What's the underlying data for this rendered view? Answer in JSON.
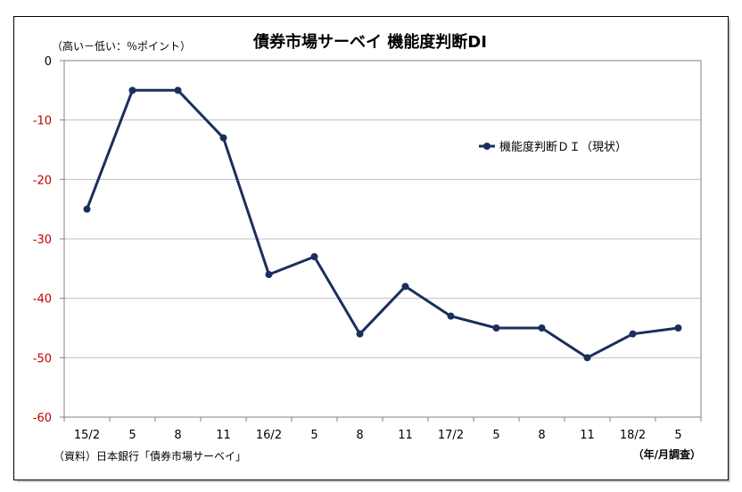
{
  "chart_data": {
    "type": "line",
    "title": "債券市場サーベイ 機能度判断DI",
    "ylabel": "（高い－低い：％ポイント）",
    "xlabel": "（年/月調査）",
    "source": "（資料）日本銀行「債券市場サーベイ」",
    "categories": [
      "15/2",
      "5",
      "8",
      "11",
      "16/2",
      "5",
      "8",
      "11",
      "17/2",
      "5",
      "8",
      "11",
      "18/2",
      "5"
    ],
    "ylim": [
      -60,
      0
    ],
    "yticks": [
      0,
      -10,
      -20,
      -30,
      -40,
      -50,
      -60
    ],
    "grid": true,
    "legend_position": "right",
    "series": [
      {
        "name": "機能度判断ＤＩ（現状）",
        "values": [
          -25,
          -5,
          -5,
          -13,
          -36,
          -33,
          -46,
          -38,
          -43,
          -45,
          -45,
          -50,
          -46,
          -45
        ],
        "color": "#1b2f5e"
      }
    ],
    "colors": {
      "line": "#1b2f5e",
      "negative_tick": "#c00000",
      "zero_tick": "#000000",
      "grid": "#bfbfbf"
    }
  }
}
